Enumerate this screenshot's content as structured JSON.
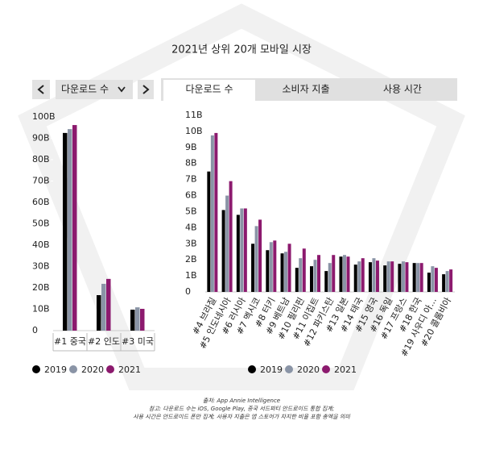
{
  "title": "2021년 상위 20개 모바일 시장",
  "dropdown": "다운로드 수",
  "tabs": [
    "다운로드 수",
    "소비자 지출",
    "사용 시간"
  ],
  "footnotes": [
    "출처: App Annie Intelligence",
    "참고: 다운로드 수는 iOS, Google Play, 중국 서드파티 안드로이드 통합 집계;",
    "사용 시간은 안드로이드 폰만 집계; 사용자 지출은 앱 스토어가 차지한 비율 포함 총액을 의미"
  ],
  "chart_data": [
    {
      "type": "bar",
      "categories": [
        "#1 중국",
        "#2 인도",
        "#3 미국"
      ],
      "series": [
        {
          "name": "2019",
          "color": "#000000",
          "values": [
            92.5,
            16.6,
            9.8
          ]
        },
        {
          "name": "2020",
          "color": "#8a94a6",
          "values": [
            94.3,
            21.9,
            10.9
          ]
        },
        {
          "name": "2021",
          "color": "#8c1a6e",
          "values": [
            96.2,
            24.2,
            10.2
          ]
        }
      ],
      "ylim": [
        0,
        100
      ],
      "yticks": [
        0,
        {
          "value": 10,
          "label": "10B"
        },
        {
          "value": 20,
          "label": "20B"
        },
        {
          "value": 30,
          "label": "30B"
        },
        {
          "value": 40,
          "label": "40B"
        },
        {
          "value": 50,
          "label": "50B"
        },
        {
          "value": 60,
          "label": "60B"
        },
        {
          "value": 70,
          "label": "70B"
        },
        {
          "value": 80,
          "label": "80B"
        },
        {
          "value": 90,
          "label": "90B"
        },
        {
          "value": 100,
          "label": "100B"
        }
      ]
    },
    {
      "type": "bar",
      "categories": [
        "#4 브라질",
        "#5 인도네시아",
        "#6 러시아",
        "#7 멕시코",
        "#8 터키",
        "#9 베트남",
        "#10 필리핀",
        "#11 이집트",
        "#12 파키스탄",
        "#13 일본",
        "#14 태국",
        "#15 영국",
        "#16 독일",
        "#17 프랑스",
        "#18 한국",
        "#19 사우디 아...",
        "#20 콜롬비아"
      ],
      "series": [
        {
          "name": "2019",
          "color": "#000000",
          "values": [
            7.5,
            5.1,
            4.8,
            3.0,
            2.6,
            2.4,
            1.5,
            1.6,
            1.3,
            2.2,
            1.7,
            1.85,
            1.65,
            1.75,
            1.8,
            1.2,
            1.1
          ]
        },
        {
          "name": "2020",
          "color": "#8a94a6",
          "values": [
            9.75,
            6.0,
            5.2,
            4.1,
            3.1,
            2.5,
            2.1,
            2.0,
            1.8,
            2.3,
            1.9,
            2.1,
            1.9,
            1.9,
            1.8,
            1.6,
            1.3
          ]
        },
        {
          "name": "2021",
          "color": "#8c1a6e",
          "values": [
            9.9,
            6.9,
            5.2,
            4.5,
            3.2,
            3.0,
            2.7,
            2.3,
            2.3,
            2.2,
            2.1,
            1.95,
            1.9,
            1.85,
            1.8,
            1.5,
            1.4
          ]
        }
      ],
      "ylim": [
        0,
        11
      ],
      "yticks": [
        0,
        {
          "value": 1,
          "label": "1B"
        },
        {
          "value": 2,
          "label": "2B"
        },
        {
          "value": 3,
          "label": "3B"
        },
        {
          "value": 4,
          "label": "4B"
        },
        {
          "value": 5,
          "label": "5B"
        },
        {
          "value": 6,
          "label": "6B"
        },
        {
          "value": 7,
          "label": "7B"
        },
        {
          "value": 8,
          "label": "8B"
        },
        {
          "value": 9,
          "label": "9B"
        },
        {
          "value": 10,
          "label": "10B"
        },
        {
          "value": 11,
          "label": "11B"
        }
      ]
    }
  ]
}
